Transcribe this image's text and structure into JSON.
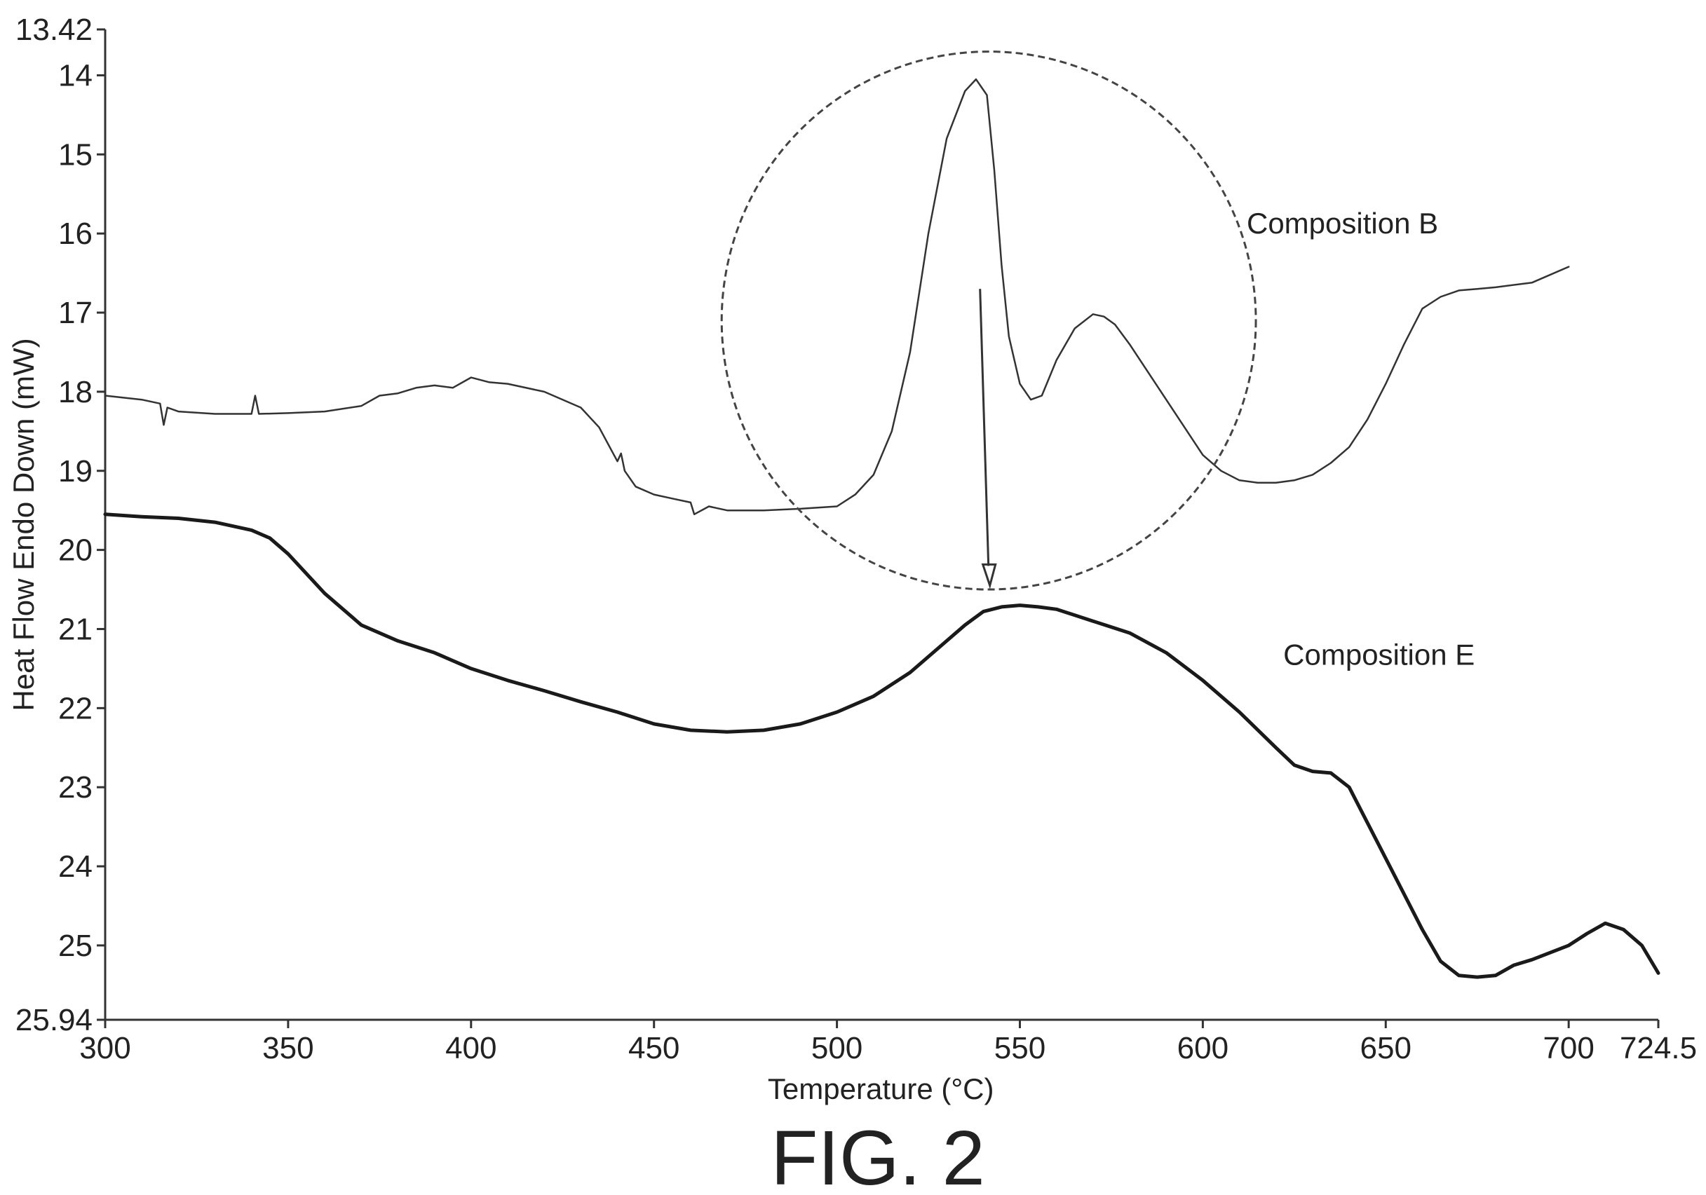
{
  "figure": {
    "caption": "FIG. 2"
  },
  "chart_data": {
    "type": "line",
    "title": "",
    "xlabel": "Temperature (°C)",
    "ylabel": "Heat Flow Endo Down (mW)",
    "xlim": [
      300,
      724.5
    ],
    "ylim": [
      13.42,
      25.94
    ],
    "y_inverted": true,
    "grid": false,
    "xticks": [
      "300",
      "350",
      "400",
      "450",
      "500",
      "550",
      "600",
      "650",
      "700",
      "724.5"
    ],
    "yticks": [
      "13.42",
      "14",
      "15",
      "16",
      "17",
      "18",
      "19",
      "20",
      "21",
      "22",
      "23",
      "24",
      "25",
      "25.94"
    ],
    "series": [
      {
        "name": "Composition B",
        "color": "#333333",
        "x": [
          300,
          310,
          315,
          316,
          317,
          320,
          330,
          340,
          341,
          342,
          350,
          360,
          370,
          375,
          380,
          385,
          390,
          395,
          400,
          405,
          410,
          420,
          430,
          435,
          440,
          441,
          442,
          445,
          450,
          455,
          460,
          461,
          465,
          470,
          480,
          490,
          500,
          505,
          510,
          515,
          520,
          525,
          530,
          535,
          538,
          541,
          543,
          545,
          547,
          550,
          553,
          556,
          560,
          565,
          570,
          573,
          576,
          580,
          585,
          590,
          595,
          600,
          605,
          610,
          615,
          620,
          625,
          630,
          635,
          640,
          645,
          650,
          655,
          660,
          665,
          670,
          675,
          680,
          690,
          700
        ],
        "y": [
          18.05,
          18.1,
          18.15,
          18.42,
          18.2,
          18.25,
          18.28,
          18.28,
          18.05,
          18.28,
          18.27,
          18.25,
          18.18,
          18.05,
          18.02,
          17.95,
          17.92,
          17.95,
          17.82,
          17.88,
          17.9,
          18.0,
          18.2,
          18.45,
          18.88,
          18.78,
          19.0,
          19.2,
          19.3,
          19.35,
          19.4,
          19.55,
          19.45,
          19.5,
          19.5,
          19.48,
          19.45,
          19.3,
          19.05,
          18.5,
          17.5,
          16.0,
          14.8,
          14.2,
          14.05,
          14.25,
          15.2,
          16.4,
          17.3,
          17.9,
          18.1,
          18.05,
          17.6,
          17.2,
          17.02,
          17.05,
          17.15,
          17.4,
          17.75,
          18.1,
          18.45,
          18.8,
          19.0,
          19.12,
          19.15,
          19.15,
          19.12,
          19.05,
          18.9,
          18.7,
          18.35,
          17.9,
          17.4,
          16.95,
          16.8,
          16.72,
          16.7,
          16.68,
          16.62,
          16.42
        ]
      },
      {
        "name": "Composition E",
        "color": "#1a1a1a",
        "x": [
          300,
          310,
          320,
          330,
          340,
          345,
          350,
          360,
          370,
          380,
          390,
          400,
          410,
          420,
          430,
          440,
          450,
          460,
          470,
          480,
          490,
          500,
          510,
          520,
          530,
          535,
          540,
          545,
          550,
          555,
          560,
          570,
          580,
          590,
          600,
          610,
          620,
          625,
          630,
          635,
          640,
          650,
          660,
          665,
          670,
          675,
          680,
          685,
          690,
          700,
          705,
          710,
          715,
          720,
          724.5
        ],
        "y": [
          19.55,
          19.58,
          19.6,
          19.65,
          19.75,
          19.85,
          20.05,
          20.55,
          20.95,
          21.15,
          21.3,
          21.5,
          21.65,
          21.78,
          21.92,
          22.05,
          22.2,
          22.28,
          22.3,
          22.28,
          22.2,
          22.05,
          21.85,
          21.55,
          21.15,
          20.95,
          20.78,
          20.72,
          20.7,
          20.72,
          20.75,
          20.9,
          21.05,
          21.3,
          21.65,
          22.05,
          22.5,
          22.72,
          22.8,
          22.82,
          23.0,
          23.9,
          24.8,
          25.2,
          25.38,
          25.4,
          25.38,
          25.25,
          25.18,
          25.0,
          24.85,
          24.72,
          24.8,
          25.0,
          25.35
        ]
      }
    ],
    "annotations": [
      {
        "type": "dashed-ellipse",
        "around": "Composition B peak"
      },
      {
        "type": "arrow",
        "from": "Composition B",
        "to": "Composition E"
      }
    ]
  }
}
